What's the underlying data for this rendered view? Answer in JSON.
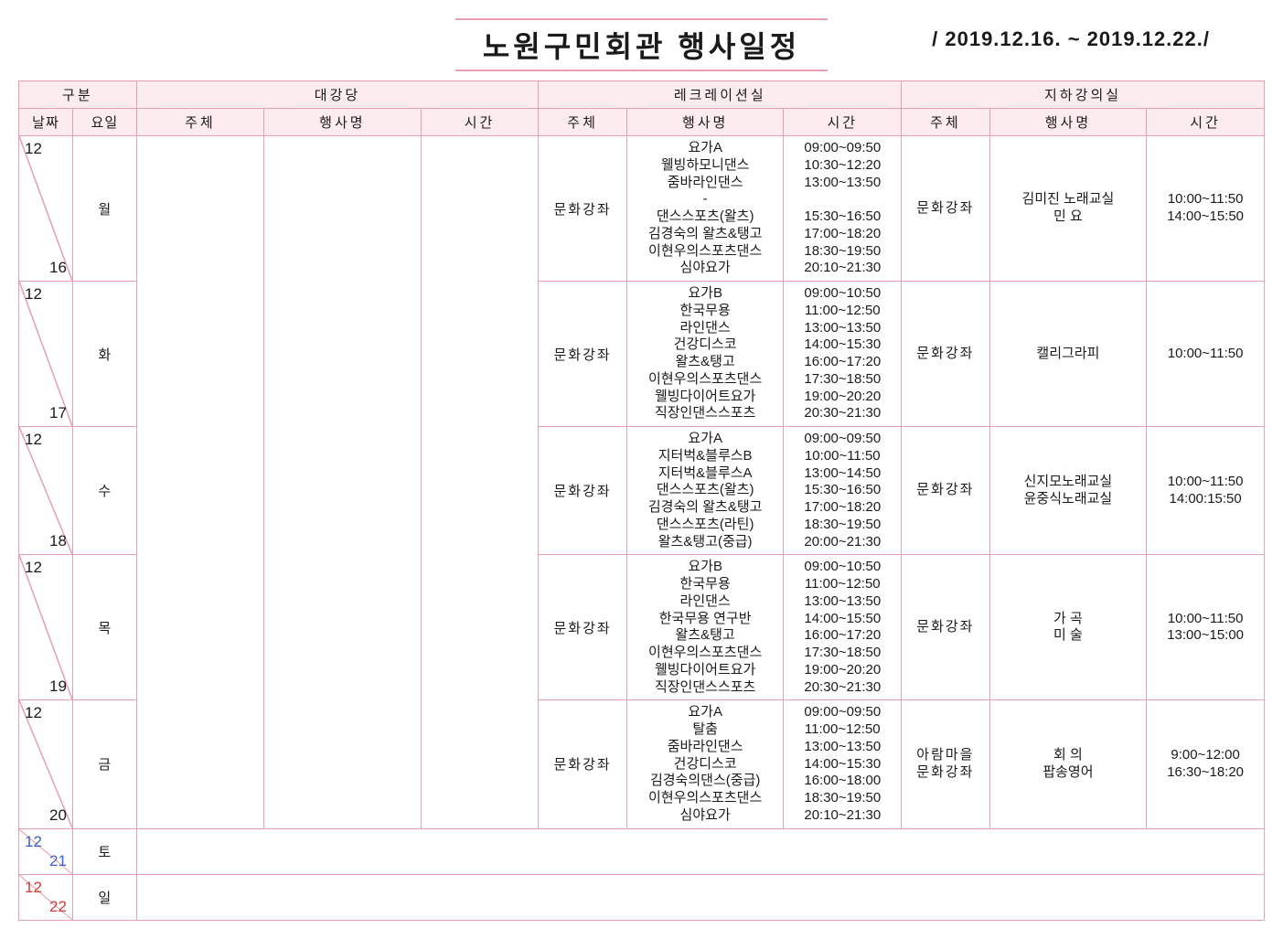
{
  "title": "노원구민회관 행사일정",
  "date_range": "/ 2019.12.16. ~ 2019.12.22./",
  "header": {
    "group": "구분",
    "date": "날짜",
    "dow": "요일",
    "venues": [
      "대강당",
      "레크레이션실",
      "지하강의실"
    ],
    "sub": {
      "subject": "주체",
      "event": "행사명",
      "time": "시간"
    }
  },
  "rows": [
    {
      "month": "12",
      "day": "16",
      "dow": "월",
      "rec": {
        "subject": "문화강좌",
        "events": "요가A\n웰빙하모니댄스\n줌바라인댄스\n-\n댄스스포츠(왈츠)\n김경숙의 왈츠&탱고\n이현우의스포츠댄스\n심야요가",
        "times": "09:00~09:50\n10:30~12:20\n13:00~13:50\n\n15:30~16:50\n17:00~18:20\n18:30~19:50\n20:10~21:30"
      },
      "base": {
        "subject": "문화강좌",
        "events": "김미진 노래교실\n민  요",
        "times": "10:00~11:50\n14:00~15:50"
      }
    },
    {
      "month": "12",
      "day": "17",
      "dow": "화",
      "rec": {
        "subject": "문화강좌",
        "events": "요가B\n한국무용\n라인댄스\n건강디스코\n왈츠&탱고\n이현우의스포츠댄스\n웰빙다이어트요가\n직장인댄스스포츠",
        "times": "09:00~10:50\n11:00~12:50\n13:00~13:50\n14:00~15:30\n16:00~17:20\n17:30~18:50\n19:00~20:20\n20:30~21:30"
      },
      "base": {
        "subject": "문화강좌",
        "events": "캘리그라피",
        "times": "10:00~11:50"
      }
    },
    {
      "month": "12",
      "day": "18",
      "dow": "수",
      "rec": {
        "subject": "문화강좌",
        "events": "요가A\n지터벅&블루스B\n지터벅&블루스A\n댄스스포츠(왈츠)\n김경숙의 왈츠&탱고\n댄스스포츠(라틴)\n왈츠&탱고(중급)",
        "times": "09:00~09:50\n10:00~11:50\n13:00~14:50\n15:30~16:50\n17:00~18:20\n18:30~19:50\n20:00~21:30"
      },
      "base": {
        "subject": "문화강좌",
        "events": "신지모노래교실\n윤중식노래교실",
        "times": "10:00~11:50\n14:00:15:50"
      }
    },
    {
      "month": "12",
      "day": "19",
      "dow": "목",
      "rec": {
        "subject": "문화강좌",
        "events": "요가B\n한국무용\n라인댄스\n한국무용 연구반\n왈츠&탱고\n이현우의스포츠댄스\n웰빙다이어트요가\n직장인댄스스포츠",
        "times": "09:00~10:50\n11:00~12:50\n13:00~13:50\n14:00~15:50\n16:00~17:20\n17:30~18:50\n19:00~20:20\n20:30~21:30"
      },
      "base": {
        "subject": "문화강좌",
        "events": "가   곡\n미   술",
        "times": "10:00~11:50\n13:00~15:00"
      }
    },
    {
      "month": "12",
      "day": "20",
      "dow": "금",
      "rec": {
        "subject": "문화강좌",
        "events": "요가A\n탈춤\n줌바라인댄스\n건강디스코\n김경숙의댄스(중급)\n이현우의스포츠댄스\n심야요가",
        "times": "09:00~09:50\n11:00~12:50\n13:00~13:50\n14:00~15:30\n16:00~18:00\n18:30~19:50\n20:10~21:30"
      },
      "base": {
        "subject": "아람마을\n문화강좌",
        "events": "회     의\n팝송영어",
        "times": "9:00~12:00\n16:30~18:20"
      }
    },
    {
      "month": "12",
      "day": "21",
      "dow": "토",
      "weekend": "sat"
    },
    {
      "month": "12",
      "day": "22",
      "dow": "일",
      "weekend": "sun"
    }
  ]
}
